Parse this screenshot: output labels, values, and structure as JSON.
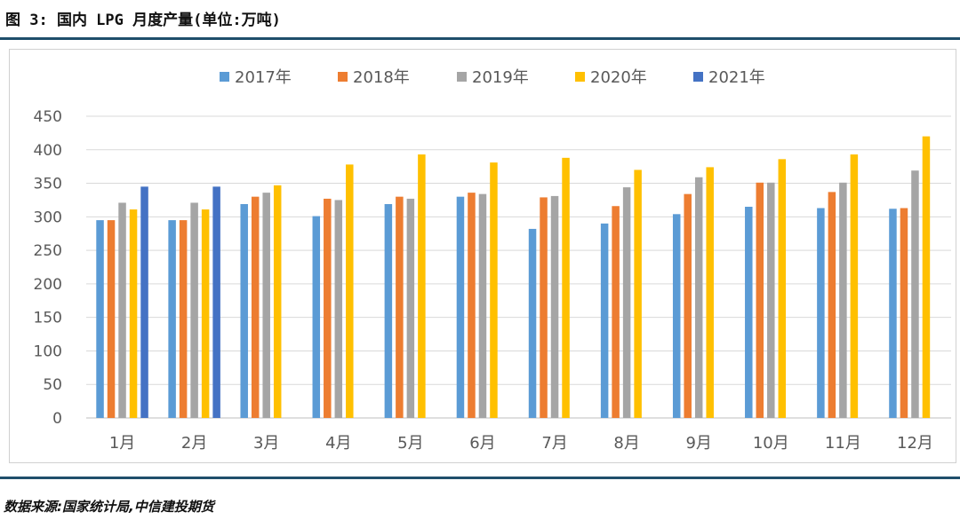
{
  "figure": {
    "title": "图 3: 国内 LPG 月度产量(单位:万吨)",
    "source": "数据来源:国家统计局,中信建投期货"
  },
  "chart_data": {
    "type": "bar",
    "title": "",
    "xlabel": "",
    "ylabel": "",
    "ylim": [
      0,
      450
    ],
    "yticks": [
      0,
      50,
      100,
      150,
      200,
      250,
      300,
      350,
      400,
      450
    ],
    "grid": true,
    "legend_position": "top",
    "categories": [
      "1月",
      "2月",
      "3月",
      "4月",
      "5月",
      "6月",
      "7月",
      "8月",
      "9月",
      "10月",
      "11月",
      "12月"
    ],
    "series": [
      {
        "name": "2017年",
        "color": "#5B9BD5",
        "values": [
          295,
          295,
          319,
          301,
          319,
          330,
          282,
          290,
          304,
          315,
          313,
          312
        ]
      },
      {
        "name": "2018年",
        "color": "#ED7D31",
        "values": [
          295,
          295,
          330,
          327,
          330,
          336,
          329,
          316,
          334,
          351,
          337,
          313
        ]
      },
      {
        "name": "2019年",
        "color": "#A5A5A5",
        "values": [
          321,
          321,
          336,
          325,
          327,
          334,
          331,
          344,
          359,
          351,
          351,
          369
        ]
      },
      {
        "name": "2020年",
        "color": "#FFC000",
        "values": [
          311,
          311,
          347,
          378,
          393,
          381,
          388,
          370,
          374,
          386,
          393,
          420
        ]
      },
      {
        "name": "2021年",
        "color": "#4472C4",
        "values": [
          345,
          345,
          null,
          null,
          null,
          null,
          null,
          null,
          null,
          null,
          null,
          null
        ]
      }
    ]
  }
}
